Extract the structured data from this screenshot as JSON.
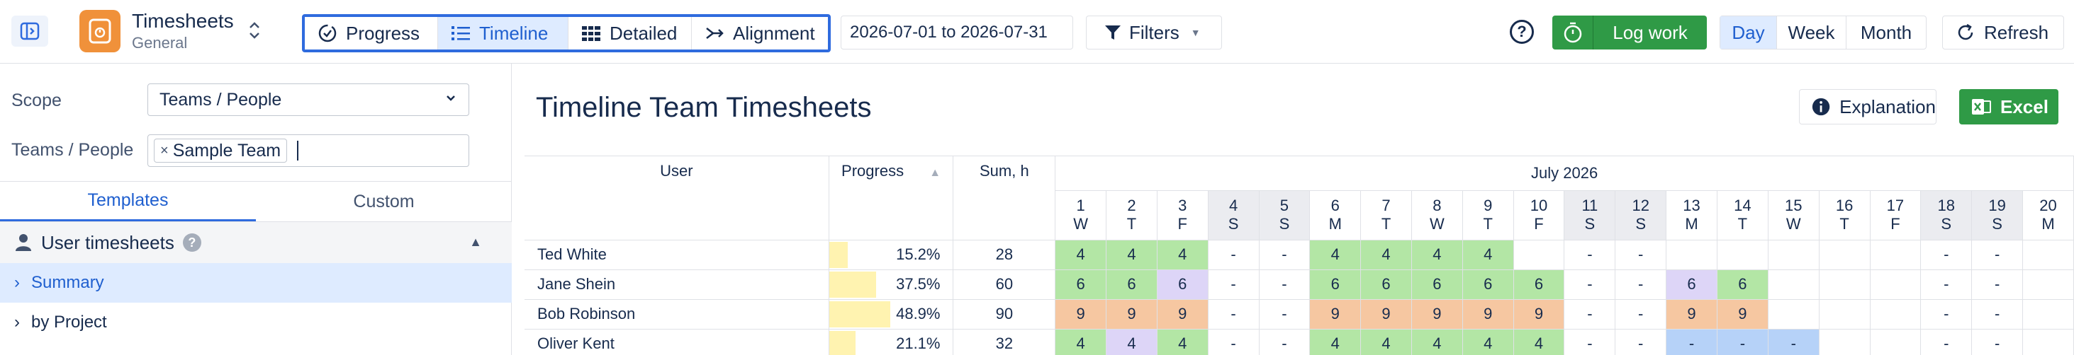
{
  "header": {
    "app_title": "Timesheets",
    "app_subtitle": "General",
    "view_tabs": [
      {
        "label": "Progress",
        "icon": "progress-check-icon",
        "active": false
      },
      {
        "label": "Timeline",
        "icon": "list-icon",
        "active": true
      },
      {
        "label": "Detailed",
        "icon": "grid-icon",
        "active": false
      },
      {
        "label": "Alignment",
        "icon": "merge-arrow-icon",
        "active": false
      }
    ],
    "date_range": "2026-07-01 to 2026-07-31",
    "filters_label": "Filters",
    "log_work_label": "Log work",
    "range_buttons": [
      {
        "label": "Day",
        "active": true
      },
      {
        "label": "Week",
        "active": false
      },
      {
        "label": "Month",
        "active": false
      }
    ],
    "refresh_label": "Refresh",
    "colors": {
      "accent": "#2f6bde",
      "green": "#2f9a46",
      "app_icon": "#f0913a"
    }
  },
  "sidebar": {
    "scope_label": "Scope",
    "scope_value": "Teams / People",
    "teams_label": "Teams / People",
    "teams_tags": [
      "Sample Team"
    ],
    "tabs": [
      {
        "label": "Templates",
        "active": true
      },
      {
        "label": "Custom",
        "active": false
      }
    ],
    "section_title": "User timesheets",
    "templates": [
      {
        "label": "Summary",
        "active": true
      },
      {
        "label": "by Project",
        "active": false
      }
    ]
  },
  "report": {
    "title": "Timeline Team Timesheets",
    "explanation_label": "Explanation",
    "excel_label": "Excel",
    "columns": {
      "user": "User",
      "progress": "Progress",
      "sum": "Sum, h"
    },
    "month_label": "July 2026",
    "days": [
      {
        "d": "1",
        "w": "W",
        "weekend": false
      },
      {
        "d": "2",
        "w": "T",
        "weekend": false
      },
      {
        "d": "3",
        "w": "F",
        "weekend": false
      },
      {
        "d": "4",
        "w": "S",
        "weekend": true
      },
      {
        "d": "5",
        "w": "S",
        "weekend": true
      },
      {
        "d": "6",
        "w": "M",
        "weekend": false
      },
      {
        "d": "7",
        "w": "T",
        "weekend": false
      },
      {
        "d": "8",
        "w": "W",
        "weekend": false
      },
      {
        "d": "9",
        "w": "T",
        "weekend": false
      },
      {
        "d": "10",
        "w": "F",
        "weekend": false
      },
      {
        "d": "11",
        "w": "S",
        "weekend": true
      },
      {
        "d": "12",
        "w": "S",
        "weekend": true
      },
      {
        "d": "13",
        "w": "M",
        "weekend": false
      },
      {
        "d": "14",
        "w": "T",
        "weekend": false
      },
      {
        "d": "15",
        "w": "W",
        "weekend": false
      },
      {
        "d": "16",
        "w": "T",
        "weekend": false
      },
      {
        "d": "17",
        "w": "F",
        "weekend": false
      },
      {
        "d": "18",
        "w": "S",
        "weekend": true
      },
      {
        "d": "19",
        "w": "S",
        "weekend": true
      },
      {
        "d": "20",
        "w": "M",
        "weekend": false
      }
    ],
    "rows": [
      {
        "user": "Ted White",
        "progress": "15.2%",
        "progress_value": 0.152,
        "sum": "28",
        "cells": [
          [
            "4",
            "g"
          ],
          [
            "4",
            "g"
          ],
          [
            "4",
            "g"
          ],
          [
            "-",
            ""
          ],
          [
            "-",
            ""
          ],
          [
            "4",
            "g"
          ],
          [
            "4",
            "g"
          ],
          [
            "4",
            "g"
          ],
          [
            "4",
            "g"
          ],
          [
            "",
            ""
          ],
          [
            "-",
            ""
          ],
          [
            "-",
            ""
          ],
          [
            "",
            ""
          ],
          [
            "",
            ""
          ],
          [
            "",
            ""
          ],
          [
            "",
            ""
          ],
          [
            "",
            ""
          ],
          [
            "-",
            ""
          ],
          [
            "-",
            ""
          ],
          [
            "",
            ""
          ]
        ]
      },
      {
        "user": "Jane Shein",
        "progress": "37.5%",
        "progress_value": 0.375,
        "sum": "60",
        "cells": [
          [
            "6",
            "g"
          ],
          [
            "6",
            "g"
          ],
          [
            "6",
            "p"
          ],
          [
            "-",
            ""
          ],
          [
            "-",
            ""
          ],
          [
            "6",
            "g"
          ],
          [
            "6",
            "g"
          ],
          [
            "6",
            "g"
          ],
          [
            "6",
            "g"
          ],
          [
            "6",
            "g"
          ],
          [
            "-",
            ""
          ],
          [
            "-",
            ""
          ],
          [
            "6",
            "p"
          ],
          [
            "6",
            "g"
          ],
          [
            "",
            ""
          ],
          [
            "",
            ""
          ],
          [
            "",
            ""
          ],
          [
            "-",
            ""
          ],
          [
            "-",
            ""
          ],
          [
            "",
            ""
          ]
        ]
      },
      {
        "user": "Bob Robinson",
        "progress": "48.9%",
        "progress_value": 0.489,
        "sum": "90",
        "cells": [
          [
            "9",
            "o"
          ],
          [
            "9",
            "o"
          ],
          [
            "9",
            "o"
          ],
          [
            "-",
            ""
          ],
          [
            "-",
            ""
          ],
          [
            "9",
            "o"
          ],
          [
            "9",
            "o"
          ],
          [
            "9",
            "o"
          ],
          [
            "9",
            "o"
          ],
          [
            "9",
            "o"
          ],
          [
            "-",
            ""
          ],
          [
            "-",
            ""
          ],
          [
            "9",
            "o"
          ],
          [
            "9",
            "o"
          ],
          [
            "",
            ""
          ],
          [
            "",
            ""
          ],
          [
            "",
            ""
          ],
          [
            "-",
            ""
          ],
          [
            "-",
            ""
          ],
          [
            "",
            ""
          ]
        ]
      },
      {
        "user": "Oliver Kent",
        "progress": "21.1%",
        "progress_value": 0.211,
        "sum": "32",
        "cells": [
          [
            "4",
            "g"
          ],
          [
            "4",
            "p"
          ],
          [
            "4",
            "g"
          ],
          [
            "-",
            ""
          ],
          [
            "-",
            ""
          ],
          [
            "4",
            "g"
          ],
          [
            "4",
            "g"
          ],
          [
            "4",
            "g"
          ],
          [
            "4",
            "g"
          ],
          [
            "4",
            "g"
          ],
          [
            "-",
            ""
          ],
          [
            "-",
            ""
          ],
          [
            "-",
            "b"
          ],
          [
            "-",
            "b"
          ],
          [
            "-",
            "b"
          ],
          [
            "",
            ""
          ],
          [
            "",
            ""
          ],
          [
            "-",
            ""
          ],
          [
            "-",
            ""
          ],
          [
            "",
            ""
          ]
        ]
      }
    ]
  }
}
